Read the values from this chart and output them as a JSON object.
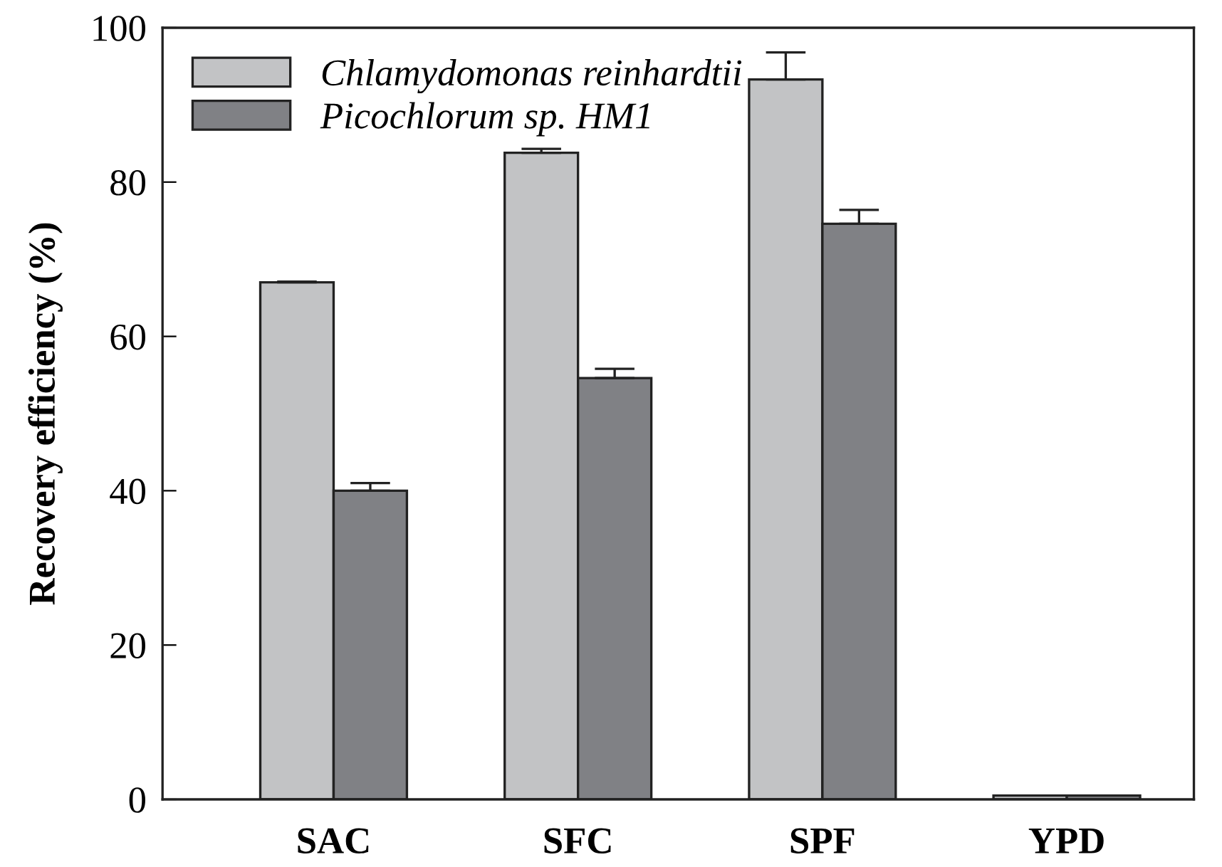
{
  "chart_data": {
    "type": "bar",
    "ylabel": "Recovery efficiency (%)",
    "categories": [
      "SAC",
      "SFC",
      "SPF",
      "YPD"
    ],
    "ylim": [
      0,
      100
    ],
    "yticks": [
      0,
      20,
      40,
      60,
      80,
      100
    ],
    "legend": "top left",
    "grid": false,
    "series": [
      {
        "name": "Chlamydomonas reinhardtii",
        "color": "#c2c3c5",
        "values": [
          67.0,
          83.8,
          93.3,
          0.5
        ],
        "errors": [
          0.1,
          0.5,
          3.5,
          null
        ]
      },
      {
        "name": "Picochlorum sp. HM1",
        "color": "#808185",
        "values": [
          40.0,
          54.6,
          74.6,
          0.5
        ],
        "errors": [
          1.0,
          1.2,
          1.8,
          null
        ]
      }
    ]
  }
}
